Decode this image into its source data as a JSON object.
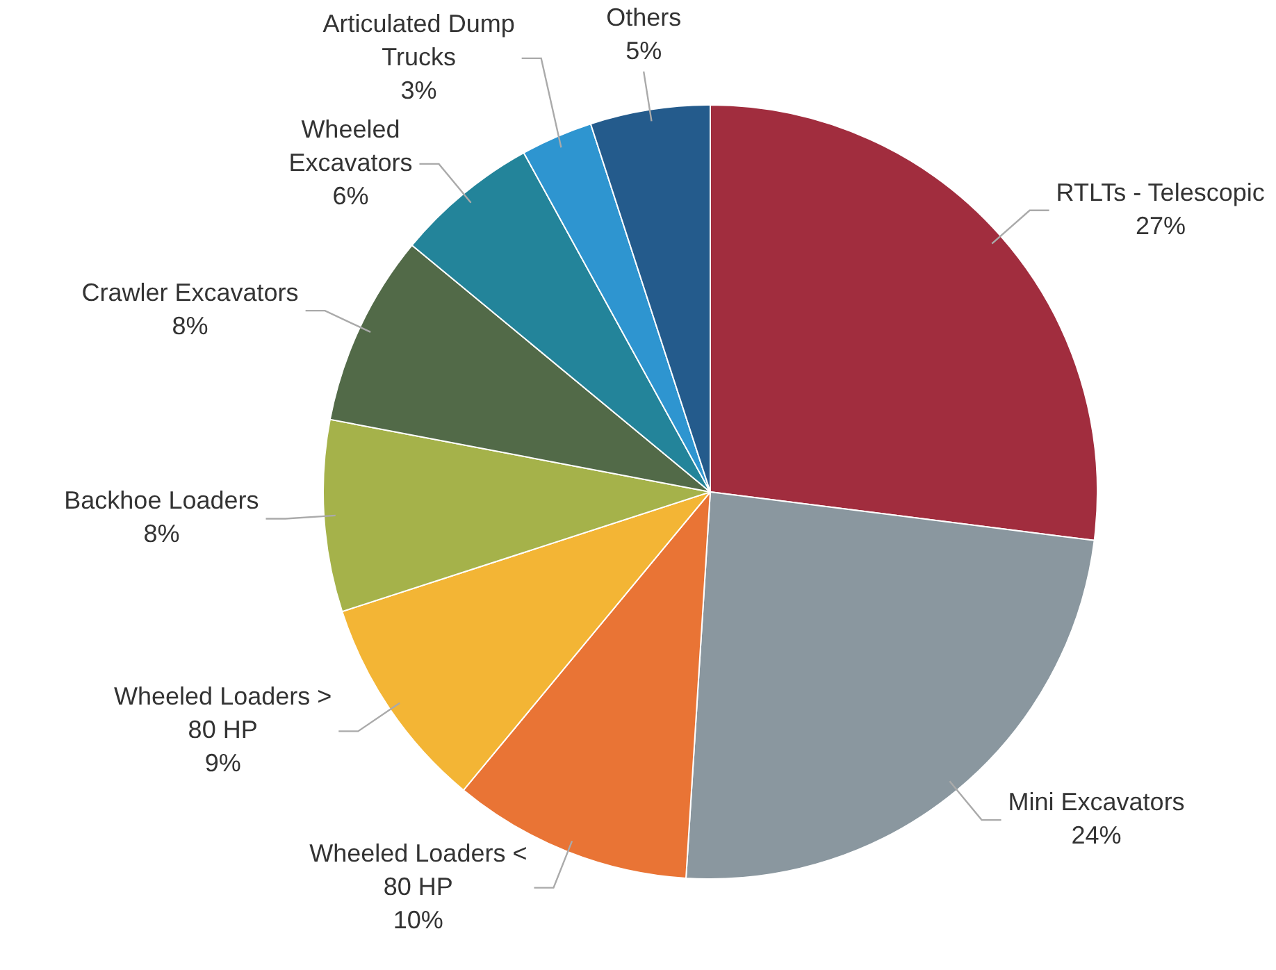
{
  "chart_data": {
    "type": "pie",
    "categories": [
      "RTLTs - Telescopic",
      "Mini Excavators",
      "Wheeled Loaders < 80 HP",
      "Wheeled Loaders > 80 HP",
      "Backhoe Loaders",
      "Crawler Excavators",
      "Wheeled Excavators",
      "Articulated Dump Trucks",
      "Others"
    ],
    "values": [
      27,
      24,
      10,
      9,
      8,
      8,
      6,
      3,
      5
    ],
    "value_labels": [
      "27%",
      "24%",
      "10%",
      "9%",
      "8%",
      "8%",
      "6%",
      "3%",
      "5%"
    ],
    "colors": [
      "#a12d3e",
      "#8a979f",
      "#e97435",
      "#f3b535",
      "#a5b24a",
      "#526a48",
      "#23849a",
      "#2e95d0",
      "#245b8c"
    ],
    "legend": false
  }
}
